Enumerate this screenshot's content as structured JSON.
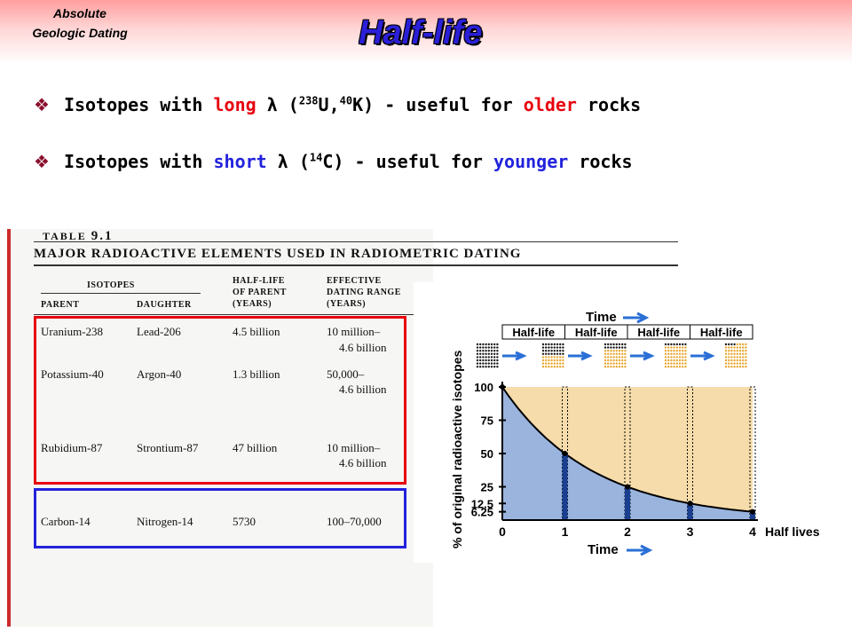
{
  "header": {
    "corner_line1": "Absolute",
    "corner_line2": "Geologic Dating",
    "title": "Half-life"
  },
  "bullets": [
    {
      "pre": "Isotopes with ",
      "keyword": "long",
      "mid": " λ (",
      "sup1": "238",
      "iso1": "U,",
      "sup2": "40",
      "iso2": "K) - useful for ",
      "age": "older",
      "post": " rocks"
    },
    {
      "pre": "Isotopes with ",
      "keyword": "short",
      "mid": " λ (",
      "sup1": "14",
      "iso1": "C) - useful for ",
      "age": "younger",
      "post": " rocks"
    }
  ],
  "table": {
    "label": "TABLE",
    "number": "9.1",
    "title": "MAJOR RADIOACTIVE ELEMENTS USED IN RADIOMETRIC DATING",
    "isotopes_header": "ISOTOPES",
    "columns": [
      "PARENT",
      "DAUGHTER",
      "HALF-LIFE OF PARENT (YEARS)",
      "EFFECTIVE DATING RANGE (YEARS)"
    ],
    "col3_lines": [
      "HALF-LIFE",
      "OF PARENT",
      "(YEARS)"
    ],
    "col4_lines": [
      "EFFECTIVE",
      "DATING RANGE",
      "(YEARS)"
    ],
    "rows": [
      {
        "parent": "Uranium-238",
        "daughter": "Lead-206",
        "half_life": "4.5 billion",
        "range1": "10 million–",
        "range2": "4.6 billion"
      },
      {
        "parent": "Potassium-40",
        "daughter": "Argon-40",
        "half_life": "1.3 billion",
        "range1": "50,000–",
        "range2": "4.6 billion"
      },
      {
        "parent": "Rubidium-87",
        "daughter": "Strontium-87",
        "half_life": "47 billion",
        "range1": "10 million–",
        "range2": "4.6 billion"
      },
      {
        "parent": "Carbon-14",
        "daughter": "Nitrogen-14",
        "half_life": "5730",
        "range1": "100–70,000",
        "range2": ""
      }
    ],
    "highlight_colors": {
      "long": "#e8000e",
      "short": "#2222dd"
    }
  },
  "chart_data": {
    "type": "area",
    "title": "Time",
    "xlabel": "Time",
    "ylabel": "% of original radioactive isotopes",
    "x_end_label": "Half lives",
    "x": [
      0,
      1,
      2,
      3,
      4
    ],
    "x_ticks": [
      "0",
      "1",
      "2",
      "3",
      "4"
    ],
    "y_ticks": [
      "100",
      "75",
      "50",
      "25",
      "12.5",
      "6.25"
    ],
    "y_tick_values": [
      100,
      75,
      50,
      25,
      12.5,
      6.25
    ],
    "series": [
      {
        "values": [
          100,
          50,
          25,
          12.5,
          6.25
        ]
      }
    ],
    "ylim": [
      0,
      100
    ],
    "xlim": [
      0,
      4
    ],
    "period_labels": [
      "Half-life",
      "Half-life",
      "Half-life",
      "Half-life"
    ],
    "colors": {
      "remaining": "#9ab4de",
      "decayed": "#f6dcaa",
      "bars": "#1a3f8f"
    }
  }
}
